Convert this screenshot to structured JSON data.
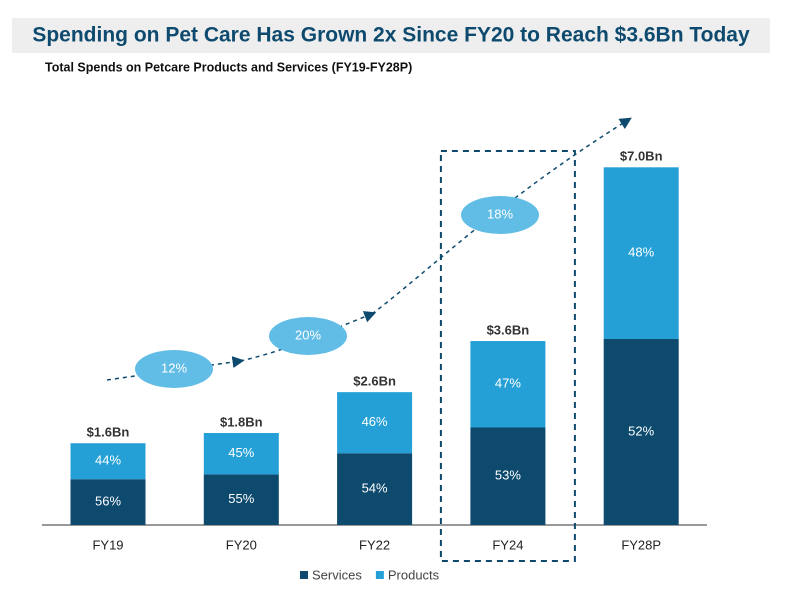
{
  "chart_data": {
    "type": "bar",
    "stacked": true,
    "title": "Spending on Pet Care Has Grown 2x Since FY20 to Reach $3.6Bn Today",
    "subtitle": "Total Spends on Petcare Products and Services (FY19-FY28P)",
    "categories": [
      "FY19",
      "FY20",
      "FY22",
      "FY24",
      "FY28P"
    ],
    "series": [
      {
        "name": "Services",
        "color": "#0d4a6e",
        "values": [
          56,
          55,
          54,
          53,
          52
        ],
        "value_labels": [
          "56%",
          "55%",
          "54%",
          "53%",
          "52%"
        ]
      },
      {
        "name": "Products",
        "color": "#25a0d6",
        "values": [
          44,
          45,
          46,
          47,
          48
        ],
        "value_labels": [
          "44%",
          "45%",
          "46%",
          "47%",
          "48%"
        ]
      }
    ],
    "totals": {
      "values": [
        1.6,
        1.8,
        2.6,
        3.6,
        7.0
      ],
      "value_labels": [
        "$1.6Bn",
        "$1.8Bn",
        "$2.6Bn",
        "$3.6Bn",
        "$7.0Bn"
      ]
    },
    "growth_labels": [
      "12%",
      "20%",
      "18%"
    ],
    "highlight": 3,
    "legend": "bottom"
  }
}
